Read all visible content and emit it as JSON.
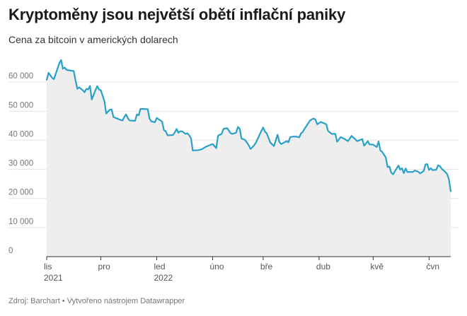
{
  "header": {
    "title": "Kryptoměny jsou největší obětí inflační paniky",
    "subtitle": "Cena za bitcoin v amerických dolarech"
  },
  "footer": {
    "text": "Zdroj: Barchart • Vytvořeno nástrojem Datawrapper"
  },
  "colors": {
    "line": "#29a0c9",
    "area": "#eeeeee",
    "grid": "#e3e3e3"
  },
  "chart_data": {
    "type": "area",
    "title": "Kryptoměny jsou největší obětí inflační paniky",
    "subtitle": "Cena za bitcoin v amerických dolarech",
    "xlabel": "",
    "ylabel": "",
    "ylim": [
      0,
      70000
    ],
    "grid": true,
    "y_ticks": [
      {
        "value": 0,
        "label": "0"
      },
      {
        "value": 10000,
        "label": "10 000"
      },
      {
        "value": 20000,
        "label": "20 000"
      },
      {
        "value": 30000,
        "label": "30 000"
      },
      {
        "value": 40000,
        "label": "40 000"
      },
      {
        "value": 50000,
        "label": "50 000"
      },
      {
        "value": 60000,
        "label": "60 000"
      }
    ],
    "x_ticks": [
      {
        "date": "2021-11-01",
        "label": "lis",
        "year": "2021"
      },
      {
        "date": "2021-12-01",
        "label": "pro",
        "year": ""
      },
      {
        "date": "2022-01-01",
        "label": "led",
        "year": "2022"
      },
      {
        "date": "2022-02-01",
        "label": "úno",
        "year": ""
      },
      {
        "date": "2022-03-01",
        "label": "bře",
        "year": ""
      },
      {
        "date": "2022-04-01",
        "label": "dub",
        "year": ""
      },
      {
        "date": "2022-05-01",
        "label": "kvě",
        "year": ""
      },
      {
        "date": "2022-06-01",
        "label": "čvn",
        "year": ""
      }
    ],
    "x_range": [
      "2021-11-01",
      "2022-06-13"
    ],
    "series": [
      {
        "points": [
          [
            "2021-11-01",
            60800
          ],
          [
            "2021-11-02",
            63200
          ],
          [
            "2021-11-04",
            61500
          ],
          [
            "2021-11-05",
            61000
          ],
          [
            "2021-11-08",
            66500
          ],
          [
            "2021-11-09",
            67600
          ],
          [
            "2021-11-10",
            64600
          ],
          [
            "2021-11-11",
            65000
          ],
          [
            "2021-11-12",
            64200
          ],
          [
            "2021-11-16",
            63800
          ],
          [
            "2021-11-17",
            60500
          ],
          [
            "2021-11-18",
            57700
          ],
          [
            "2021-11-19",
            58200
          ],
          [
            "2021-11-21",
            57200
          ],
          [
            "2021-11-22",
            56500
          ],
          [
            "2021-11-23",
            57700
          ],
          [
            "2021-11-24",
            57500
          ],
          [
            "2021-11-25",
            58700
          ],
          [
            "2021-11-26",
            54000
          ],
          [
            "2021-11-28",
            57200
          ],
          [
            "2021-11-29",
            58600
          ],
          [
            "2021-11-30",
            57500
          ],
          [
            "2021-12-01",
            57200
          ],
          [
            "2021-12-03",
            53500
          ],
          [
            "2021-12-04",
            49200
          ],
          [
            "2021-12-06",
            50500
          ],
          [
            "2021-12-07",
            50600
          ],
          [
            "2021-12-08",
            48000
          ],
          [
            "2021-12-10",
            47500
          ],
          [
            "2021-12-12",
            47000
          ],
          [
            "2021-12-13",
            46800
          ],
          [
            "2021-12-14",
            48000
          ],
          [
            "2021-12-15",
            48900
          ],
          [
            "2021-12-16",
            47600
          ],
          [
            "2021-12-17",
            46800
          ],
          [
            "2021-12-20",
            46700
          ],
          [
            "2021-12-21",
            48900
          ],
          [
            "2021-12-22",
            48600
          ],
          [
            "2021-12-23",
            50800
          ],
          [
            "2021-12-27",
            50700
          ],
          [
            "2021-12-28",
            47500
          ],
          [
            "2021-12-29",
            46500
          ],
          [
            "2021-12-31",
            46200
          ],
          [
            "2022-01-01",
            47700
          ],
          [
            "2022-01-04",
            46400
          ],
          [
            "2022-01-05",
            43500
          ],
          [
            "2022-01-06",
            43100
          ],
          [
            "2022-01-07",
            41700
          ],
          [
            "2022-01-10",
            41800
          ],
          [
            "2022-01-11",
            42700
          ],
          [
            "2022-01-12",
            43900
          ],
          [
            "2022-01-13",
            42600
          ],
          [
            "2022-01-14",
            43100
          ],
          [
            "2022-01-15",
            43100
          ],
          [
            "2022-01-17",
            42200
          ],
          [
            "2022-01-18",
            42400
          ],
          [
            "2022-01-19",
            41700
          ],
          [
            "2022-01-20",
            40700
          ],
          [
            "2022-01-21",
            36500
          ],
          [
            "2022-01-24",
            36600
          ],
          [
            "2022-01-26",
            36900
          ],
          [
            "2022-01-28",
            37700
          ],
          [
            "2022-01-31",
            38500
          ],
          [
            "2022-02-01",
            38700
          ],
          [
            "2022-02-03",
            37300
          ],
          [
            "2022-02-04",
            41600
          ],
          [
            "2022-02-06",
            42200
          ],
          [
            "2022-02-07",
            43900
          ],
          [
            "2022-02-09",
            44200
          ],
          [
            "2022-02-11",
            42400
          ],
          [
            "2022-02-12",
            42200
          ],
          [
            "2022-02-14",
            42600
          ],
          [
            "2022-02-15",
            44600
          ],
          [
            "2022-02-16",
            44000
          ],
          [
            "2022-02-17",
            40600
          ],
          [
            "2022-02-19",
            40100
          ],
          [
            "2022-02-21",
            38300
          ],
          [
            "2022-02-22",
            37000
          ],
          [
            "2022-02-23",
            37600
          ],
          [
            "2022-02-24",
            38300
          ],
          [
            "2022-02-25",
            39200
          ],
          [
            "2022-02-28",
            43200
          ],
          [
            "2022-03-01",
            44400
          ],
          [
            "2022-03-02",
            43000
          ],
          [
            "2022-03-03",
            42400
          ],
          [
            "2022-03-05",
            39200
          ],
          [
            "2022-03-07",
            38000
          ],
          [
            "2022-03-09",
            41900
          ],
          [
            "2022-03-10",
            39400
          ],
          [
            "2022-03-11",
            38700
          ],
          [
            "2022-03-14",
            39700
          ],
          [
            "2022-03-15",
            39300
          ],
          [
            "2022-03-16",
            41100
          ],
          [
            "2022-03-18",
            41300
          ],
          [
            "2022-03-20",
            41200
          ],
          [
            "2022-03-21",
            41000
          ],
          [
            "2022-03-22",
            42400
          ],
          [
            "2022-03-23",
            42900
          ],
          [
            "2022-03-24",
            44000
          ],
          [
            "2022-03-27",
            46800
          ],
          [
            "2022-03-28",
            47200
          ],
          [
            "2022-03-29",
            47500
          ],
          [
            "2022-03-30",
            47100
          ],
          [
            "2022-03-31",
            45500
          ],
          [
            "2022-04-02",
            46300
          ],
          [
            "2022-04-05",
            45500
          ],
          [
            "2022-04-06",
            43200
          ],
          [
            "2022-04-08",
            42200
          ],
          [
            "2022-04-10",
            42200
          ],
          [
            "2022-04-11",
            39500
          ],
          [
            "2022-04-13",
            41100
          ],
          [
            "2022-04-15",
            40500
          ],
          [
            "2022-04-17",
            39700
          ],
          [
            "2022-04-19",
            41500
          ],
          [
            "2022-04-21",
            40400
          ],
          [
            "2022-04-22",
            39700
          ],
          [
            "2022-04-25",
            40400
          ],
          [
            "2022-04-26",
            38100
          ],
          [
            "2022-04-28",
            39700
          ],
          [
            "2022-04-29",
            38600
          ],
          [
            "2022-05-01",
            38500
          ],
          [
            "2022-05-03",
            37700
          ],
          [
            "2022-05-04",
            39600
          ],
          [
            "2022-05-05",
            36500
          ],
          [
            "2022-05-06",
            36000
          ],
          [
            "2022-05-08",
            34100
          ],
          [
            "2022-05-09",
            30800
          ],
          [
            "2022-05-10",
            31000
          ],
          [
            "2022-05-11",
            28900
          ],
          [
            "2022-05-12",
            28300
          ],
          [
            "2022-05-13",
            29300
          ],
          [
            "2022-05-15",
            31300
          ],
          [
            "2022-05-16",
            29900
          ],
          [
            "2022-05-17",
            30400
          ],
          [
            "2022-05-18",
            28700
          ],
          [
            "2022-05-19",
            30300
          ],
          [
            "2022-05-20",
            29100
          ],
          [
            "2022-05-23",
            29100
          ],
          [
            "2022-05-24",
            29600
          ],
          [
            "2022-05-26",
            29200
          ],
          [
            "2022-05-27",
            28600
          ],
          [
            "2022-05-29",
            29400
          ],
          [
            "2022-05-30",
            31700
          ],
          [
            "2022-05-31",
            31800
          ],
          [
            "2022-06-01",
            29800
          ],
          [
            "2022-06-02",
            30400
          ],
          [
            "2022-06-03",
            29700
          ],
          [
            "2022-06-05",
            29900
          ],
          [
            "2022-06-06",
            31400
          ],
          [
            "2022-06-07",
            31100
          ],
          [
            "2022-06-08",
            30200
          ],
          [
            "2022-06-10",
            29100
          ],
          [
            "2022-06-11",
            28400
          ],
          [
            "2022-06-12",
            26600
          ],
          [
            "2022-06-13",
            22500
          ]
        ]
      }
    ]
  }
}
